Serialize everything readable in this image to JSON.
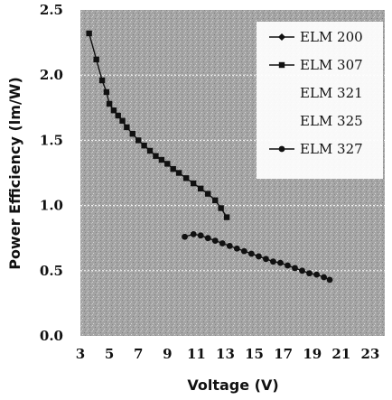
{
  "chart_data": {
    "type": "line",
    "xlabel": "Voltage (V)",
    "ylabel": "Power Efficiency (lm/W)",
    "xlim": [
      3,
      24
    ],
    "ylim": [
      0,
      2.5
    ],
    "x_ticks": [
      "3",
      "5",
      "7",
      "9",
      "11",
      "13",
      "15",
      "17",
      "19",
      "21",
      "23"
    ],
    "y_ticks": [
      "0.0",
      "0.5",
      "1.0",
      "1.5",
      "2.0",
      "2.5"
    ],
    "grid": true,
    "legend_position": "top-right",
    "colors": {
      "plot_background": "#a9a9a9",
      "marker": "#111111",
      "line": "#111111",
      "gridline": "#ffffff"
    },
    "series": [
      {
        "name": "ELM 200",
        "marker": "diamond",
        "x": [],
        "y": []
      },
      {
        "name": "ELM 307",
        "marker": "square",
        "x": [
          3.6,
          4.1,
          4.5,
          4.8,
          5.0,
          5.3,
          5.6,
          5.9,
          6.2,
          6.6,
          7.0,
          7.4,
          7.8,
          8.2,
          8.6,
          9.0,
          9.4,
          9.8,
          10.3,
          10.8,
          11.3,
          11.8,
          12.3,
          12.7,
          13.1
        ],
        "y": [
          2.32,
          2.12,
          1.96,
          1.87,
          1.78,
          1.73,
          1.69,
          1.65,
          1.6,
          1.55,
          1.5,
          1.46,
          1.42,
          1.38,
          1.35,
          1.32,
          1.28,
          1.25,
          1.21,
          1.17,
          1.13,
          1.09,
          1.04,
          0.98,
          0.91
        ]
      },
      {
        "name": "ELM 321",
        "marker": "none",
        "x": [],
        "y": []
      },
      {
        "name": "ELM 325",
        "marker": "none",
        "x": [],
        "y": []
      },
      {
        "name": "ELM 327",
        "marker": "circle",
        "x": [
          10.2,
          10.8,
          11.3,
          11.8,
          12.3,
          12.8,
          13.3,
          13.8,
          14.3,
          14.8,
          15.3,
          15.8,
          16.3,
          16.8,
          17.3,
          17.8,
          18.3,
          18.8,
          19.3,
          19.8,
          20.2
        ],
        "y": [
          0.76,
          0.78,
          0.77,
          0.75,
          0.73,
          0.71,
          0.69,
          0.67,
          0.65,
          0.63,
          0.61,
          0.59,
          0.57,
          0.56,
          0.54,
          0.52,
          0.5,
          0.48,
          0.47,
          0.45,
          0.43
        ]
      }
    ]
  }
}
